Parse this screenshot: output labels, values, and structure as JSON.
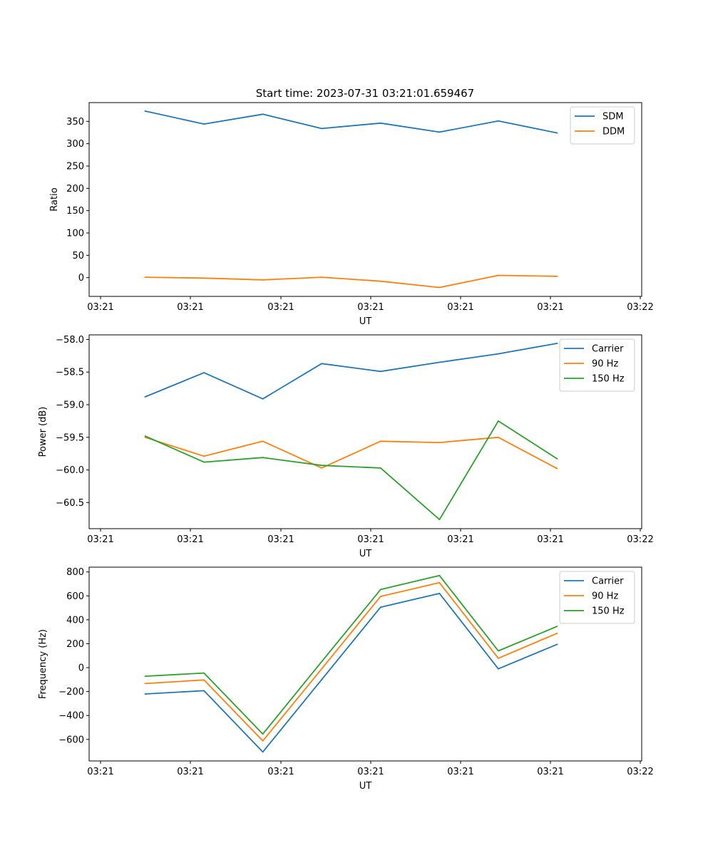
{
  "figure": {
    "title": "Start time: 2023-07-31 03:21:01.659467"
  },
  "chart_data": [
    {
      "type": "line",
      "title": "Start time: 2023-07-31 03:21:01.659467",
      "xlabel": "UT",
      "ylabel": "Ratio",
      "x_tick_labels": [
        "03:21",
        "03:21",
        "03:21",
        "03:21",
        "03:21",
        "03:21",
        "03:22"
      ],
      "y_ticks": [
        0,
        50,
        100,
        150,
        200,
        250,
        300,
        350
      ],
      "ylim": [
        -42,
        392
      ],
      "legend": "top-right",
      "series": [
        {
          "name": "SDM",
          "color": "#1f77b4",
          "values": [
            373,
            344,
            366,
            334,
            346,
            326,
            351,
            324
          ]
        },
        {
          "name": "DDM",
          "color": "#ff7f0e",
          "values": [
            1,
            -1,
            -5,
            1,
            -8,
            -22,
            5,
            3
          ]
        }
      ]
    },
    {
      "type": "line",
      "title": "",
      "xlabel": "UT",
      "ylabel": "Power (dB)",
      "x_tick_labels": [
        "03:21",
        "03:21",
        "03:21",
        "03:21",
        "03:21",
        "03:21",
        "03:22"
      ],
      "y_ticks": [
        -58.0,
        -58.5,
        -59.0,
        -59.5,
        -60.0,
        -60.5
      ],
      "y_tick_labels": [
        "−58.0",
        "−58.5",
        "−59.0",
        "−59.5",
        "−60.0",
        "−60.5"
      ],
      "ylim": [
        -60.9,
        -57.93
      ],
      "legend": "top-right",
      "series": [
        {
          "name": "Carrier",
          "color": "#1f77b4",
          "values": [
            -58.88,
            -58.51,
            -58.91,
            -58.37,
            -58.49,
            -58.35,
            -58.22,
            -58.06
          ]
        },
        {
          "name": "90 Hz",
          "color": "#ff7f0e",
          "values": [
            -59.5,
            -59.79,
            -59.56,
            -59.97,
            -59.56,
            -59.58,
            -59.5,
            -59.98
          ]
        },
        {
          "name": "150 Hz",
          "color": "#2ca02c",
          "values": [
            -59.48,
            -59.88,
            -59.81,
            -59.93,
            -59.97,
            -60.76,
            -59.25,
            -59.83
          ]
        }
      ]
    },
    {
      "type": "line",
      "title": "",
      "xlabel": "UT",
      "ylabel": "Frequency (Hz)",
      "x_tick_labels": [
        "03:21",
        "03:21",
        "03:21",
        "03:21",
        "03:21",
        "03:21",
        "03:22"
      ],
      "y_ticks": [
        -600,
        -400,
        -200,
        0,
        200,
        400,
        600,
        800
      ],
      "y_tick_labels": [
        "−600",
        "−400",
        "−200",
        "0",
        "200",
        "400",
        "600",
        "800"
      ],
      "ylim": [
        -780,
        840
      ],
      "legend": "top-right",
      "series": [
        {
          "name": "Carrier",
          "color": "#1f77b4",
          "values": [
            -220,
            -193,
            -705,
            -100,
            505,
            620,
            -10,
            195
          ]
        },
        {
          "name": "90 Hz",
          "color": "#ff7f0e",
          "values": [
            -133,
            -103,
            -612,
            -10,
            595,
            710,
            78,
            287
          ]
        },
        {
          "name": "150 Hz",
          "color": "#2ca02c",
          "values": [
            -72,
            -45,
            -555,
            50,
            653,
            770,
            140,
            345
          ]
        }
      ]
    }
  ]
}
